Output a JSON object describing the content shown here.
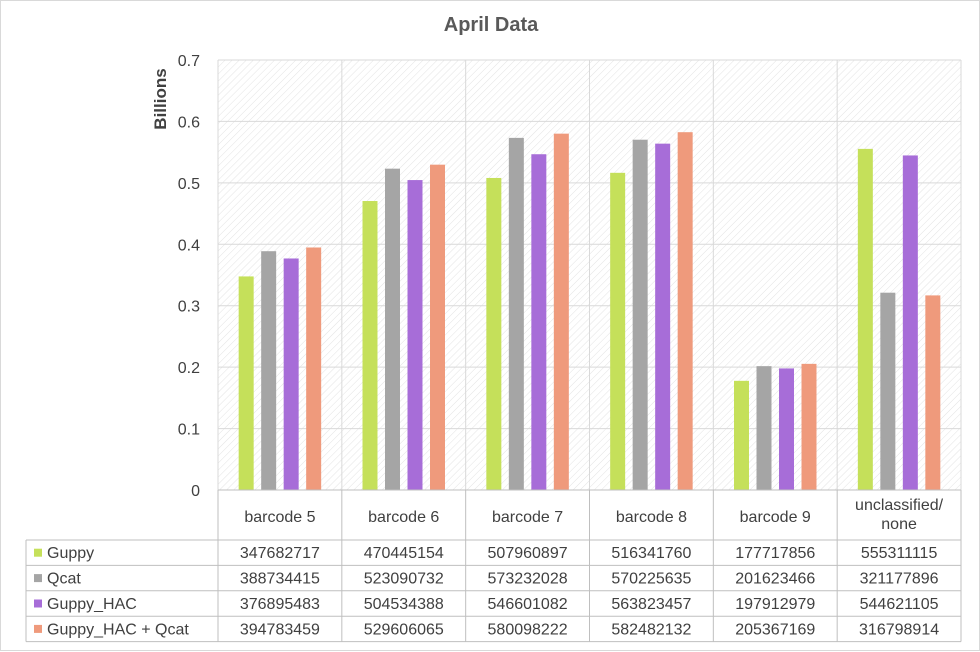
{
  "chart_data": {
    "type": "bar",
    "title": "April Data",
    "ylabel": "Billions",
    "xlabel": "",
    "ylim": [
      0,
      0.7
    ],
    "yticks": [
      "0",
      "0.1",
      "0.2",
      "0.3",
      "0.4",
      "0.5",
      "0.6",
      "0.7"
    ],
    "grid": true,
    "legend": "data-table",
    "categories": [
      "barcode 5",
      "barcode 6",
      "barcode 7",
      "barcode 8",
      "barcode 9",
      "unclassified/\nnone"
    ],
    "series": [
      {
        "name": "Guppy",
        "color": "#c5e05a",
        "values": [
          347682717,
          470445154,
          507960897,
          516341760,
          177717856,
          555311115
        ]
      },
      {
        "name": "Qcat",
        "color": "#a5a5a5",
        "values": [
          388734415,
          523090732,
          573232028,
          570225635,
          201623466,
          321177896
        ]
      },
      {
        "name": "Guppy_HAC",
        "color": "#a76dd8",
        "values": [
          376895483,
          504534388,
          546601082,
          563823457,
          197912979,
          544621105
        ]
      },
      {
        "name": "Guppy_HAC + Qcat",
        "color": "#ef9a7c",
        "values": [
          394783459,
          529606065,
          580098222,
          582482132,
          205367169,
          316798914
        ]
      }
    ]
  }
}
